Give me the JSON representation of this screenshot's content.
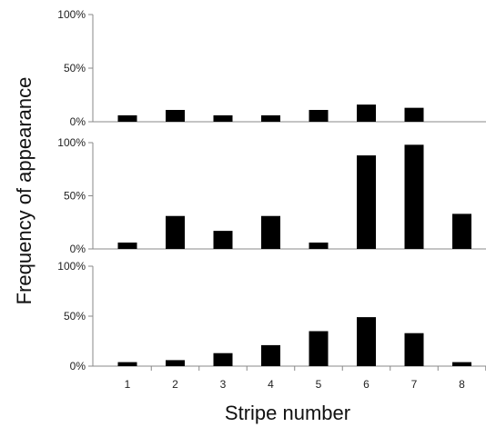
{
  "chart_data": {
    "type": "bar",
    "xlabel": "Stripe number",
    "ylabel": "Frequency of appearance",
    "categories": [
      "1",
      "2",
      "3",
      "4",
      "5",
      "6",
      "7",
      "8"
    ],
    "ylim": [
      0,
      100
    ],
    "y_ticks": [
      "0%",
      "50%",
      "100%"
    ],
    "grid": false,
    "bar_color": "#000000",
    "axis_color": "#888888",
    "panels": [
      {
        "values": [
          6,
          11,
          6,
          6,
          11,
          16,
          13,
          0
        ]
      },
      {
        "values": [
          6,
          31,
          17,
          31,
          6,
          88,
          98,
          33
        ]
      },
      {
        "values": [
          4,
          6,
          13,
          21,
          35,
          49,
          33,
          4
        ]
      }
    ]
  }
}
